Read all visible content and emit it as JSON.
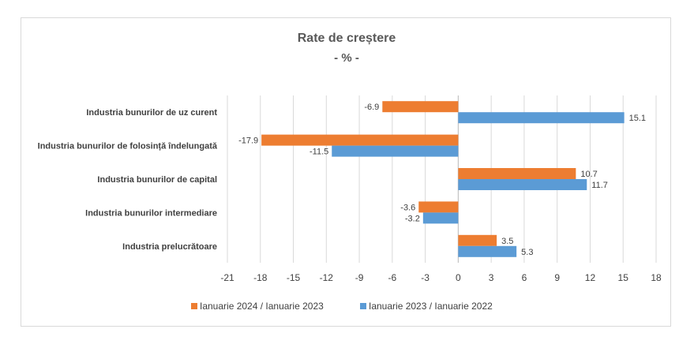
{
  "chart_data": {
    "type": "bar",
    "orientation": "horizontal",
    "title": "Rate de creștere",
    "subtitle": "- % -",
    "categories": [
      "Industria bunurilor de uz curent",
      "Industria bunurilor de folosință  îndelungată",
      "Industria bunurilor de capital",
      "Industria bunurilor intermediare",
      "Industria prelucrătoare"
    ],
    "series": [
      {
        "name": "Ianuarie 2024 / Ianuarie 2023",
        "color": "#ED7D31",
        "values": [
          -6.9,
          -17.9,
          10.7,
          -3.6,
          3.5
        ]
      },
      {
        "name": "Ianuarie 2023 / Ianuarie 2022",
        "color": "#5B9BD5",
        "values": [
          15.1,
          -11.5,
          11.7,
          -3.2,
          5.3
        ]
      }
    ],
    "xlim": [
      -21,
      18
    ],
    "xticks": [
      -21,
      -18,
      -15,
      -12,
      -9,
      -6,
      -3,
      0,
      3,
      6,
      9,
      12,
      15,
      18
    ],
    "grid": "vertical",
    "legend": "bottom"
  }
}
